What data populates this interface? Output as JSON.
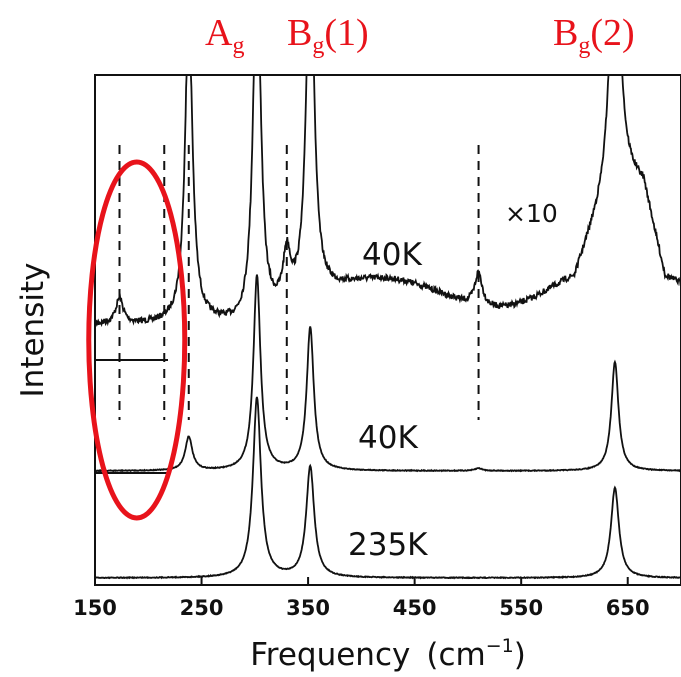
{
  "chart_data": {
    "type": "line",
    "title": "",
    "xlabel": "Frequency",
    "xlabel_unit": "(cm",
    "xlabel_unit_exp": "−1",
    "xlabel_unit_close": ")",
    "ylabel": "Intensity",
    "xlim": [
      150,
      700
    ],
    "x_ticks": [
      150,
      250,
      350,
      450,
      550,
      650
    ],
    "y_ticks_shown": false,
    "grid": false,
    "mode_labels": [
      {
        "main": "A",
        "sub": "g",
        "suffix": "",
        "x": 240
      },
      {
        "main": "B",
        "sub": "g",
        "suffix": "(1)",
        "x": 352
      },
      {
        "main": "B",
        "sub": "g",
        "suffix": "(2)",
        "x": 638
      }
    ],
    "series": [
      {
        "name": "40K",
        "scale": "×10",
        "peaks": [
          {
            "x": 173,
            "height": 0.06
          },
          {
            "x": 238,
            "height": 0.75
          },
          {
            "x": 302,
            "height": 0.9
          },
          {
            "x": 330,
            "height": 0.12
          },
          {
            "x": 352,
            "height": 0.9
          },
          {
            "x": 510,
            "height": 0.08
          },
          {
            "x": 638,
            "height": 0.9
          }
        ]
      },
      {
        "name": "40K",
        "peaks": [
          {
            "x": 238,
            "height": 0.13
          },
          {
            "x": 302,
            "height": 0.75
          },
          {
            "x": 352,
            "height": 0.55
          },
          {
            "x": 510,
            "height": 0.01
          },
          {
            "x": 638,
            "height": 0.42
          }
        ]
      },
      {
        "name": "235K",
        "peaks": [
          {
            "x": 302,
            "height": 0.6
          },
          {
            "x": 352,
            "height": 0.37
          },
          {
            "x": 638,
            "height": 0.3
          }
        ]
      }
    ],
    "dashed_markers": [
      173,
      215,
      238,
      330,
      510
    ],
    "highlight": {
      "shape": "ellipse",
      "color": "#e8131b",
      "x_center": 238
    },
    "colors": {
      "trace": "#111111",
      "annotation": "#e8131b"
    }
  }
}
